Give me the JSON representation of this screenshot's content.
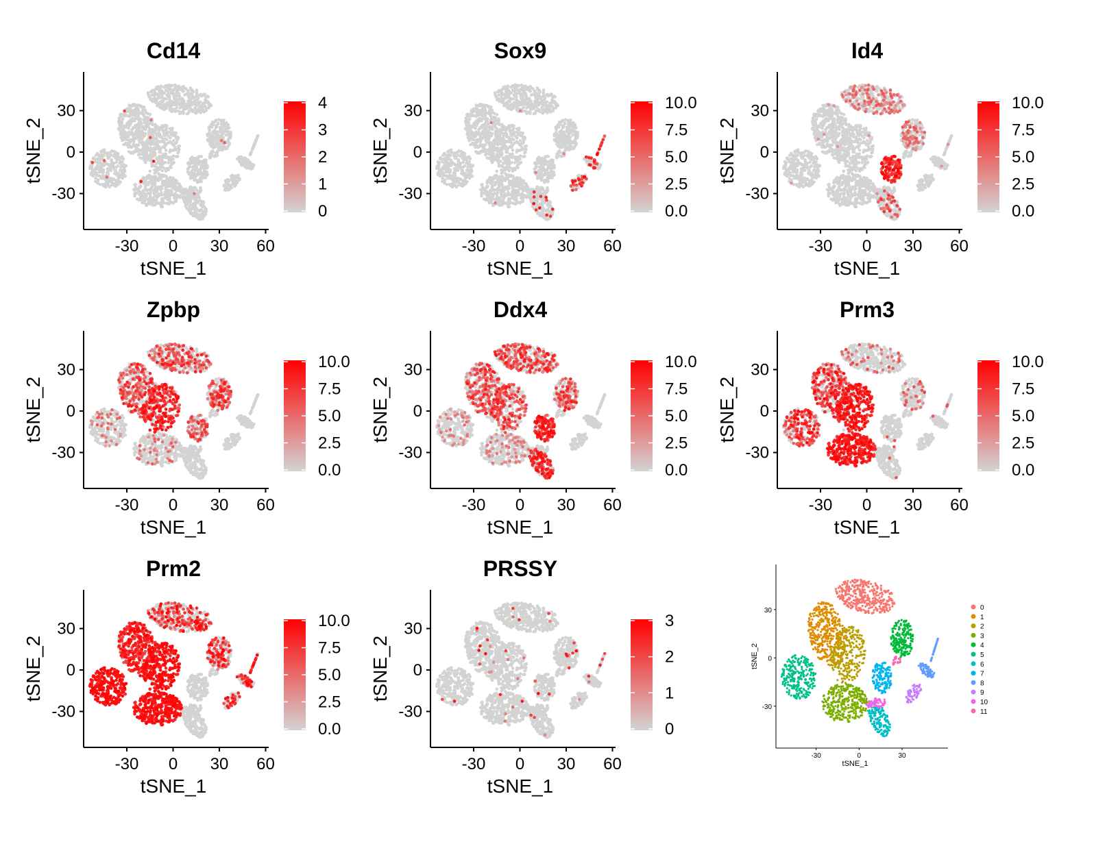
{
  "figure": {
    "panels": [
      {
        "title": "Cd14",
        "legend_labels": [
          "4",
          "3",
          "2",
          "1",
          "0"
        ]
      },
      {
        "title": "Sox9",
        "legend_labels": [
          "10.0",
          "7.5",
          "5.0",
          "2.5",
          "0.0"
        ]
      },
      {
        "title": "Id4",
        "legend_labels": [
          "10.0",
          "7.5",
          "5.0",
          "2.5",
          "0.0"
        ]
      },
      {
        "title": "Zpbp",
        "legend_labels": [
          "10.0",
          "7.5",
          "5.0",
          "2.5",
          "0.0"
        ]
      },
      {
        "title": "Ddx4",
        "legend_labels": [
          "10.0",
          "7.5",
          "5.0",
          "2.5",
          "0.0"
        ]
      },
      {
        "title": "Prm3",
        "legend_labels": [
          "10.0",
          "7.5",
          "5.0",
          "2.5",
          "0.0"
        ]
      },
      {
        "title": "Prm2",
        "legend_labels": [
          "10.0",
          "7.5",
          "5.0",
          "2.5",
          "0.0"
        ]
      },
      {
        "title": "PRSSY",
        "legend_labels": [
          "3",
          "2",
          "1",
          "0"
        ]
      }
    ],
    "cluster_panel": {
      "legend_labels": [
        "0",
        "1",
        "2",
        "3",
        "4",
        "5",
        "6",
        "7",
        "8",
        "9",
        "10",
        "11"
      ]
    }
  },
  "chart_data": [
    {
      "type": "scatter",
      "title": "Cd14",
      "xlabel": "tSNE_1",
      "ylabel": "tSNE_2",
      "xticks": [
        "-30",
        "0",
        "30",
        "60"
      ],
      "yticks": [
        "30",
        "0",
        "-30"
      ],
      "xlim": [
        -58,
        62
      ],
      "ylim": [
        -56,
        58
      ],
      "color_scale": {
        "min": 0,
        "max": 4,
        "low": "#d3d3d3",
        "high": "#ff0000"
      },
      "expression": {
        "level": "sparse",
        "note_regions": []
      }
    },
    {
      "type": "scatter",
      "title": "Sox9",
      "xlabel": "tSNE_1",
      "ylabel": "tSNE_2",
      "xticks": [
        "-30",
        "0",
        "30",
        "60"
      ],
      "yticks": [
        "30",
        "0",
        "-30"
      ],
      "xlim": [
        -58,
        62
      ],
      "ylim": [
        -56,
        58
      ],
      "color_scale": {
        "min": 0,
        "max": 10,
        "low": "#d3d3d3",
        "high": "#ff0000"
      }
    },
    {
      "type": "scatter",
      "title": "Id4",
      "xlabel": "tSNE_1",
      "ylabel": "tSNE_2",
      "xticks": [
        "-30",
        "0",
        "30",
        "60"
      ],
      "yticks": [
        "30",
        "0",
        "-30"
      ],
      "xlim": [
        -58,
        62
      ],
      "ylim": [
        -56,
        58
      ],
      "color_scale": {
        "min": 0,
        "max": 10,
        "low": "#d3d3d3",
        "high": "#ff0000"
      }
    },
    {
      "type": "scatter",
      "title": "Zpbp",
      "xlabel": "tSNE_1",
      "ylabel": "tSNE_2",
      "xticks": [
        "-30",
        "0",
        "30",
        "60"
      ],
      "yticks": [
        "30",
        "0",
        "-30"
      ],
      "xlim": [
        -58,
        62
      ],
      "ylim": [
        -56,
        58
      ],
      "color_scale": {
        "min": 0,
        "max": 10,
        "low": "#d3d3d3",
        "high": "#ff0000"
      }
    },
    {
      "type": "scatter",
      "title": "Ddx4",
      "xlabel": "tSNE_1",
      "ylabel": "tSNE_2",
      "xticks": [
        "-30",
        "0",
        "30",
        "60"
      ],
      "yticks": [
        "30",
        "0",
        "-30"
      ],
      "xlim": [
        -58,
        62
      ],
      "ylim": [
        -56,
        58
      ],
      "color_scale": {
        "min": 0,
        "max": 10,
        "low": "#d3d3d3",
        "high": "#ff0000"
      }
    },
    {
      "type": "scatter",
      "title": "Prm3",
      "xlabel": "tSNE_1",
      "ylabel": "tSNE_2",
      "xticks": [
        "-30",
        "0",
        "30",
        "60"
      ],
      "yticks": [
        "30",
        "0",
        "-30"
      ],
      "xlim": [
        -58,
        62
      ],
      "ylim": [
        -56,
        58
      ],
      "color_scale": {
        "min": 0,
        "max": 10,
        "low": "#d3d3d3",
        "high": "#ff0000"
      }
    },
    {
      "type": "scatter",
      "title": "Prm2",
      "xlabel": "tSNE_1",
      "ylabel": "tSNE_2",
      "xticks": [
        "-30",
        "0",
        "30",
        "60"
      ],
      "yticks": [
        "30",
        "0",
        "-30"
      ],
      "xlim": [
        -58,
        62
      ],
      "ylim": [
        -56,
        58
      ],
      "color_scale": {
        "min": 0,
        "max": 10,
        "low": "#d3d3d3",
        "high": "#ff0000"
      }
    },
    {
      "type": "scatter",
      "title": "PRSSY",
      "xlabel": "tSNE_1",
      "ylabel": "tSNE_2",
      "xticks": [
        "-30",
        "0",
        "30",
        "60"
      ],
      "yticks": [
        "30",
        "0",
        "-30"
      ],
      "xlim": [
        -58,
        62
      ],
      "ylim": [
        -56,
        58
      ],
      "color_scale": {
        "min": 0,
        "max": 3,
        "low": "#d3d3d3",
        "high": "#ff0000"
      }
    },
    {
      "type": "scatter",
      "title": "",
      "xlabel": "tSNE_1",
      "ylabel": "tSNE_2",
      "xticks": [
        "-30",
        "0",
        "30"
      ],
      "yticks": [
        "30",
        "0",
        "-30"
      ],
      "xlim": [
        -58,
        62
      ],
      "ylim": [
        -56,
        58
      ],
      "legend": "right",
      "clusters": [
        {
          "name": "0",
          "color": "#f8766d"
        },
        {
          "name": "1",
          "color": "#de8c00"
        },
        {
          "name": "2",
          "color": "#b79f00"
        },
        {
          "name": "3",
          "color": "#7cae00"
        },
        {
          "name": "4",
          "color": "#00ba38"
        },
        {
          "name": "5",
          "color": "#00c08b"
        },
        {
          "name": "6",
          "color": "#00bfc4"
        },
        {
          "name": "7",
          "color": "#00b4f0"
        },
        {
          "name": "8",
          "color": "#619cff"
        },
        {
          "name": "9",
          "color": "#c77cff"
        },
        {
          "name": "10",
          "color": "#f564e3"
        },
        {
          "name": "11",
          "color": "#ff64b0"
        }
      ]
    }
  ]
}
